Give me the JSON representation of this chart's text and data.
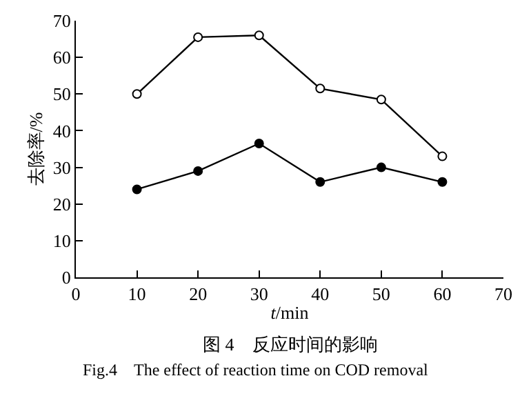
{
  "chart_data": {
    "type": "line",
    "xlabel": "t/min",
    "ylabel": "去除率/%",
    "annotations": [
      "图 4　反应时间的影响",
      "Fig.4　The effect of reaction time on COD removal"
    ],
    "x": [
      10,
      20,
      30,
      40,
      50,
      60
    ],
    "series": [
      {
        "color": "#000000",
        "values": [
          50,
          65.5,
          66,
          51.5,
          48.5,
          33
        ],
        "marker": "circle-open"
      },
      {
        "color": "#000000",
        "values": [
          24,
          29,
          36.5,
          26,
          30,
          26
        ],
        "marker": "circle"
      }
    ],
    "xlim": [
      0,
      70
    ],
    "xticks": [
      0,
      10,
      20,
      30,
      40,
      50,
      60,
      70
    ],
    "ylim": [
      0,
      70
    ],
    "yticks": [
      0,
      10,
      20,
      30,
      40,
      50,
      60,
      70
    ],
    "grid": false,
    "line_style": "solid"
  }
}
